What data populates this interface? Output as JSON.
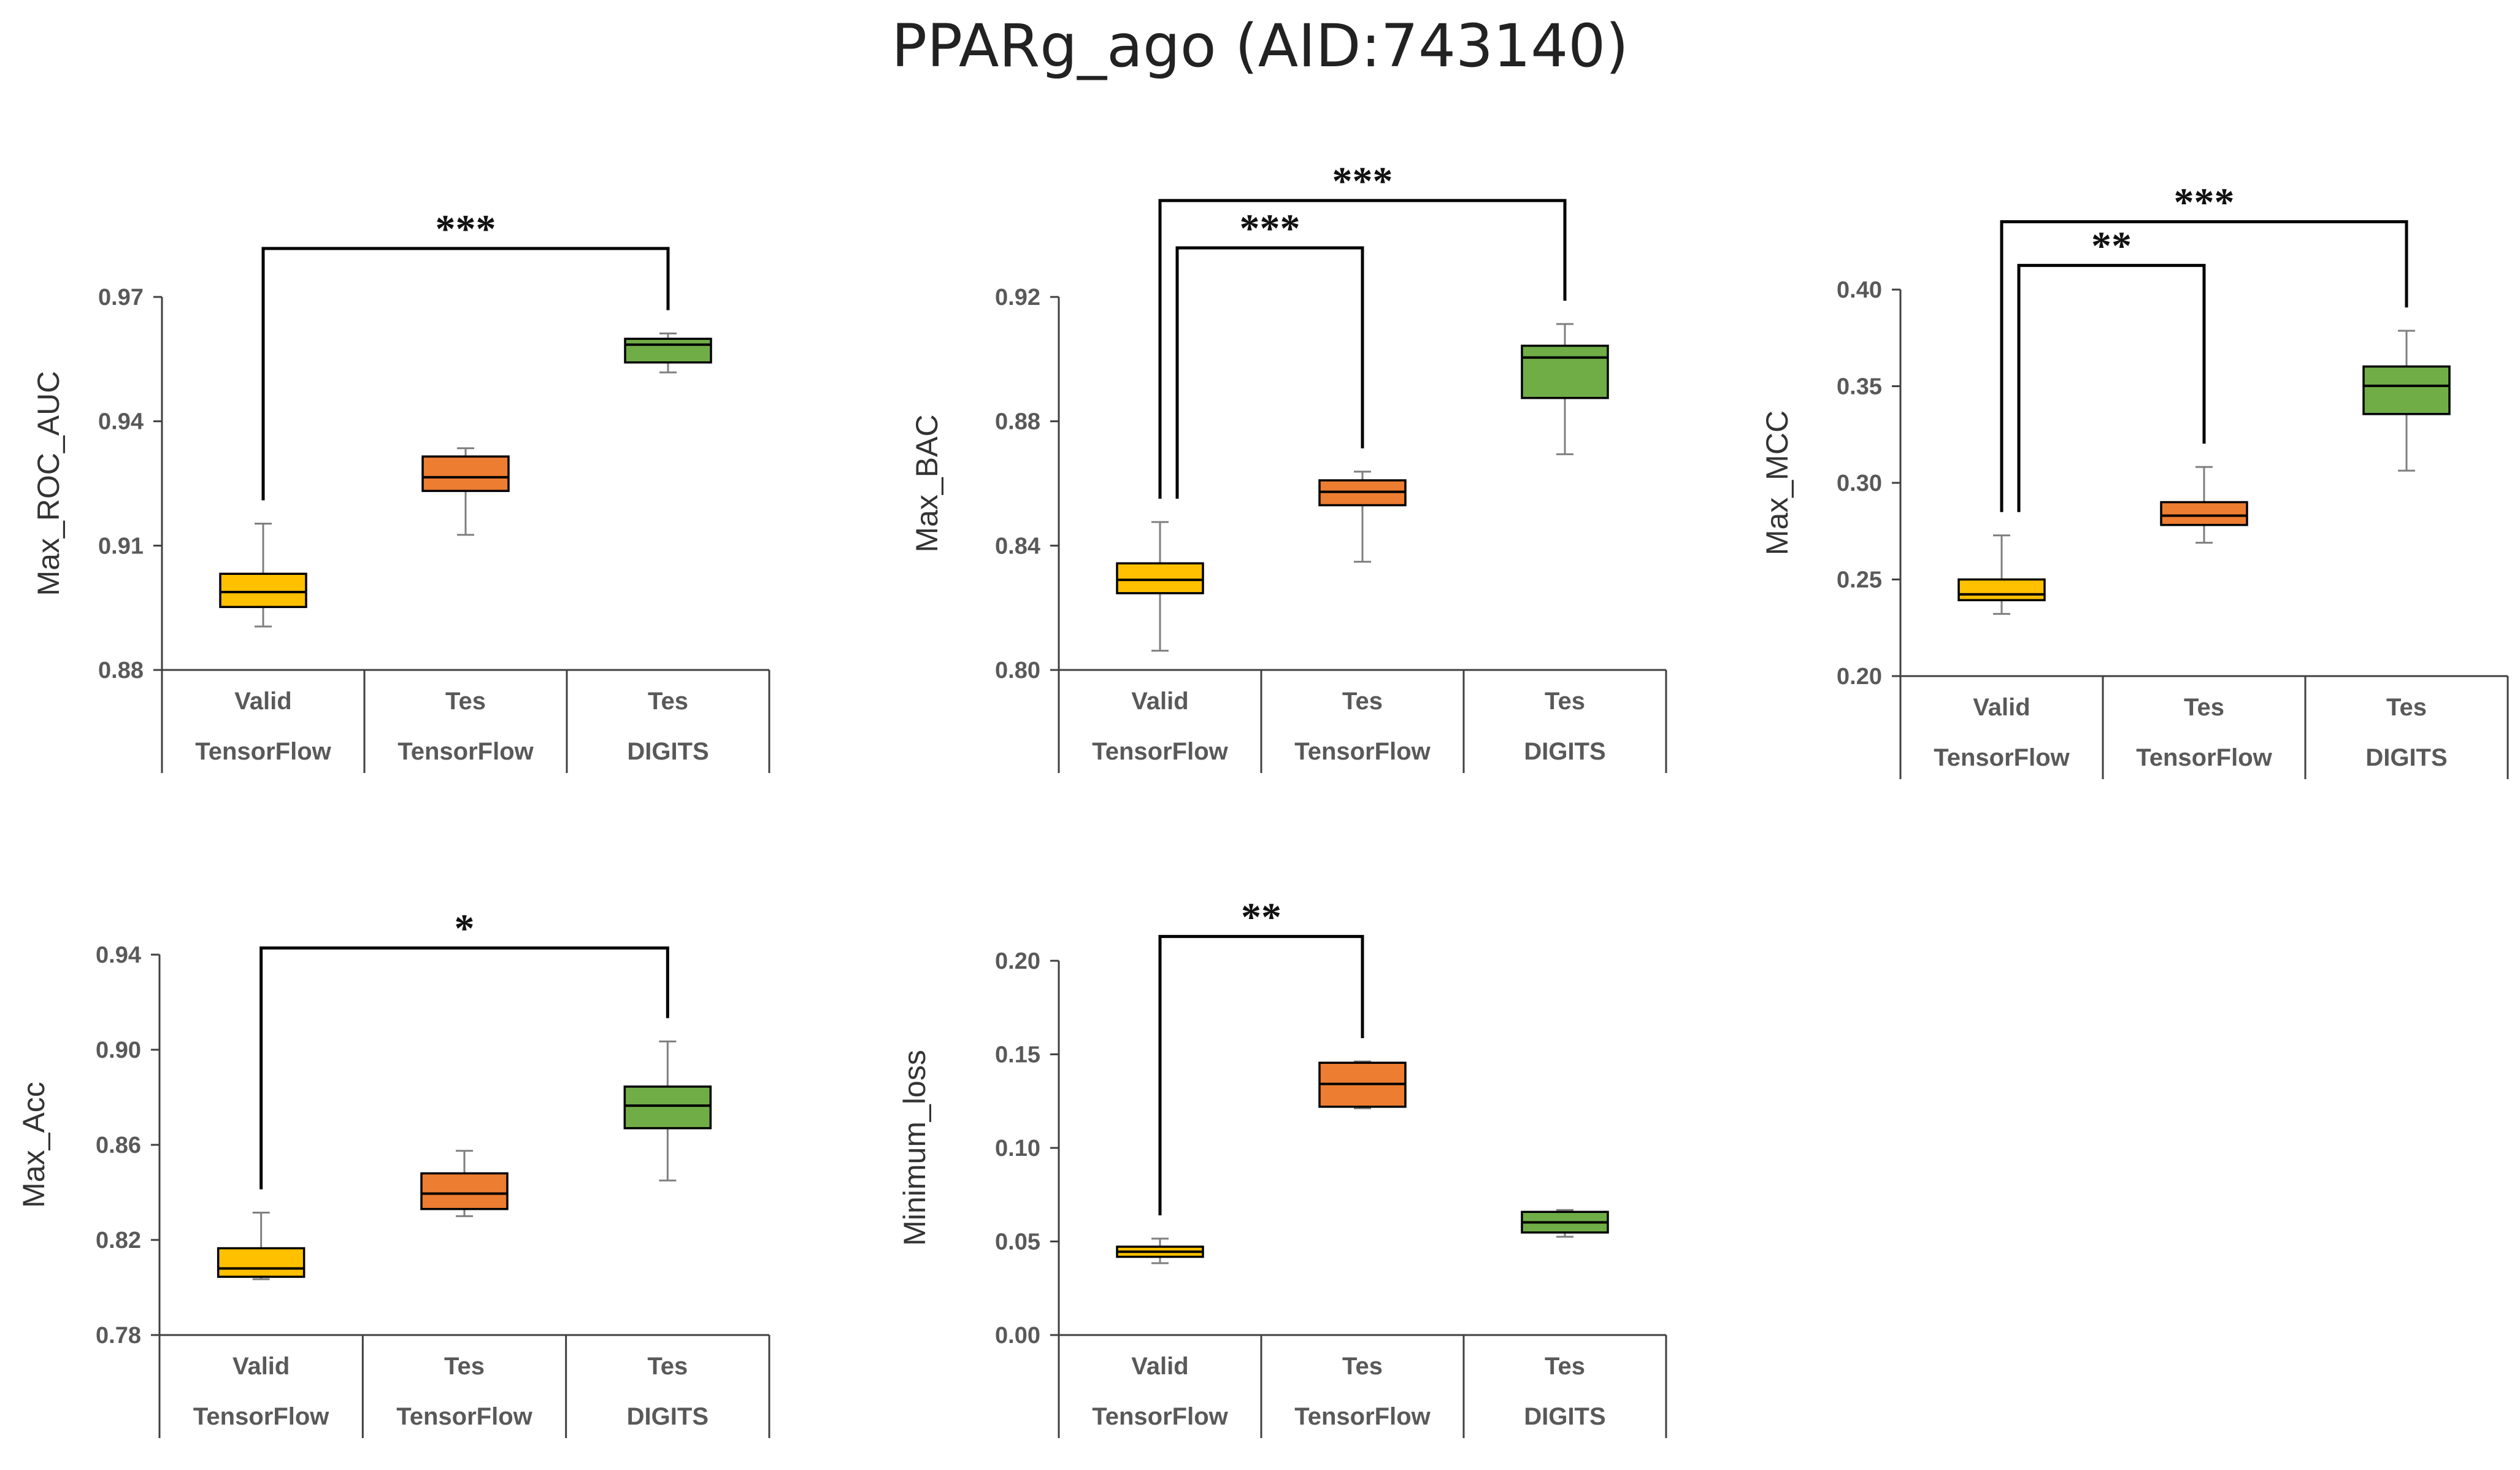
{
  "title": "PPARg_ago (AID:743140)",
  "colors": {
    "valid_tf": "#FFC000",
    "test_tf": "#ED7D31",
    "test_digits": "#70AD47",
    "box_stroke": "#000000",
    "whisker": "#7F7F7F",
    "axis": "#404040"
  },
  "chart_data": [
    {
      "type": "box",
      "id": "roc",
      "ylabel": "Max_ROC_AUC",
      "ylim": [
        0.88,
        0.97
      ],
      "yticks": [
        0.88,
        0.91,
        0.94,
        0.97
      ],
      "tick_labels": [
        "0.88",
        "0.91",
        "0.94",
        "0.97"
      ],
      "categories": [
        {
          "top": "Valid",
          "bottom": "TensorFlow"
        },
        {
          "top": "Tes",
          "bottom": "TensorFlow"
        },
        {
          "top": "Tes",
          "bottom": "DIGITS"
        }
      ],
      "series": [
        {
          "name": "Valid TensorFlow",
          "min": 0.8905,
          "q1": 0.8952,
          "median": 0.8988,
          "q3": 0.9032,
          "max": 0.9153
        },
        {
          "name": "Tes TensorFlow",
          "min": 0.9126,
          "q1": 0.9232,
          "median": 0.9265,
          "q3": 0.9315,
          "max": 0.9335
        },
        {
          "name": "Tes DIGITS",
          "min": 0.9518,
          "q1": 0.9542,
          "median": 0.9585,
          "q3": 0.9599,
          "max": 0.9612
        }
      ],
      "significance": [
        {
          "from": 0,
          "to": 2,
          "label": "***",
          "y": 0.9817
        }
      ]
    },
    {
      "type": "box",
      "id": "bac",
      "ylabel": "Max_BAC",
      "ylim": [
        0.8,
        0.92
      ],
      "yticks": [
        0.8,
        0.84,
        0.88,
        0.92
      ],
      "tick_labels": [
        "0.80",
        "0.84",
        "0.88",
        "0.92"
      ],
      "categories": [
        {
          "top": "Valid",
          "bottom": "TensorFlow"
        },
        {
          "top": "Tes",
          "bottom": "TensorFlow"
        },
        {
          "top": "Tes",
          "bottom": "DIGITS"
        }
      ],
      "series": [
        {
          "name": "Valid TensorFlow",
          "min": 0.8062,
          "q1": 0.8247,
          "median": 0.829,
          "q3": 0.8343,
          "max": 0.8476
        },
        {
          "name": "Tes TensorFlow",
          "min": 0.8348,
          "q1": 0.853,
          "median": 0.8573,
          "q3": 0.861,
          "max": 0.8638
        },
        {
          "name": "Tes DIGITS",
          "min": 0.8694,
          "q1": 0.8875,
          "median": 0.9005,
          "q3": 0.9043,
          "max": 0.9113
        }
      ],
      "significance": [
        {
          "from": 0,
          "to": 1,
          "label": "***",
          "y": 0.9358
        },
        {
          "from": 0,
          "to": 2,
          "label": "***",
          "y": 0.951
        }
      ]
    },
    {
      "type": "box",
      "id": "mcc",
      "ylabel": "Max_MCC",
      "ylim": [
        0.2,
        0.4
      ],
      "yticks": [
        0.2,
        0.25,
        0.3,
        0.35,
        0.4
      ],
      "tick_labels": [
        "0.20",
        "0.25",
        "0.30",
        "0.35",
        "0.40"
      ],
      "categories": [
        {
          "top": "Valid",
          "bottom": "TensorFlow"
        },
        {
          "top": "Tes",
          "bottom": "TensorFlow"
        },
        {
          "top": "Tes",
          "bottom": "DIGITS"
        }
      ],
      "series": [
        {
          "name": "Valid TensorFlow",
          "min": 0.2322,
          "q1": 0.2393,
          "median": 0.2423,
          "q3": 0.25,
          "max": 0.2728
        },
        {
          "name": "Tes TensorFlow",
          "min": 0.269,
          "q1": 0.2782,
          "median": 0.283,
          "q3": 0.29,
          "max": 0.3082
        },
        {
          "name": "Tes DIGITS",
          "min": 0.3063,
          "q1": 0.3356,
          "median": 0.3502,
          "q3": 0.3602,
          "max": 0.3787
        }
      ],
      "significance": [
        {
          "from": 0,
          "to": 1,
          "label": "**",
          "y": 0.4125
        },
        {
          "from": 0,
          "to": 2,
          "label": "***",
          "y": 0.4351
        }
      ]
    },
    {
      "type": "box",
      "id": "acc",
      "ylabel": "Max_Acc",
      "ylim": [
        0.78,
        0.94
      ],
      "yticks": [
        0.78,
        0.82,
        0.86,
        0.9,
        0.94
      ],
      "tick_labels": [
        "0.78",
        "0.82",
        "0.86",
        "0.90",
        "0.94"
      ],
      "categories": [
        {
          "top": "Valid",
          "bottom": "TensorFlow"
        },
        {
          "top": "Tes",
          "bottom": "TensorFlow"
        },
        {
          "top": "Tes",
          "bottom": "DIGITS"
        }
      ],
      "series": [
        {
          "name": "Valid TensorFlow",
          "min": 0.8035,
          "q1": 0.8045,
          "median": 0.808,
          "q3": 0.8165,
          "max": 0.8315
        },
        {
          "name": "Tes TensorFlow",
          "min": 0.83,
          "q1": 0.833,
          "median": 0.8395,
          "q3": 0.848,
          "max": 0.8575
        },
        {
          "name": "Tes DIGITS",
          "min": 0.845,
          "q1": 0.867,
          "median": 0.8765,
          "q3": 0.8845,
          "max": 0.9035
        }
      ],
      "significance": [
        {
          "from": 0,
          "to": 2,
          "label": "*",
          "y": 0.9428
        }
      ]
    },
    {
      "type": "box",
      "id": "loss",
      "ylabel": "Minimum_loss",
      "ylim": [
        0.0,
        0.2
      ],
      "yticks": [
        0.0,
        0.05,
        0.1,
        0.15,
        0.2
      ],
      "tick_labels": [
        "0.00",
        "0.05",
        "0.10",
        "0.15",
        "0.20"
      ],
      "categories": [
        {
          "top": "Valid",
          "bottom": "TensorFlow"
        },
        {
          "top": "Tes",
          "bottom": "TensorFlow"
        },
        {
          "top": "Tes",
          "bottom": "DIGITS"
        }
      ],
      "series": [
        {
          "name": "Valid TensorFlow",
          "min": 0.0384,
          "q1": 0.0418,
          "median": 0.0445,
          "q3": 0.0472,
          "max": 0.0515
        },
        {
          "name": "Tes TensorFlow",
          "min": 0.1212,
          "q1": 0.122,
          "median": 0.1342,
          "q3": 0.1455,
          "max": 0.1462
        },
        {
          "name": "Tes DIGITS",
          "min": 0.0525,
          "q1": 0.0548,
          "median": 0.0602,
          "q3": 0.0658,
          "max": 0.0668
        }
      ],
      "significance": [
        {
          "from": 0,
          "to": 1,
          "label": "**",
          "y": 0.213
        }
      ]
    }
  ]
}
